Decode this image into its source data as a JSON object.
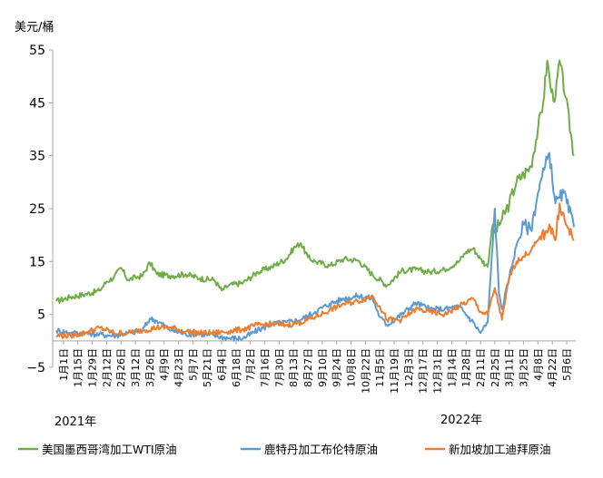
{
  "chart_data": {
    "type": "line",
    "ylabel": "美元/桶",
    "ylim": [
      -5,
      55
    ],
    "yticks": [
      "55",
      "45",
      "35",
      "25",
      "15",
      "5",
      "−5"
    ],
    "x_start": "2021-01-01",
    "x_end": "2022-05-20",
    "xtick_labels": [
      "1月1日",
      "1月15日",
      "1月29日",
      "2月12日",
      "2月26日",
      "3月12日",
      "3月26日",
      "4月9日",
      "4月23日",
      "5月7日",
      "5月21日",
      "6月4日",
      "6月18日",
      "7月2日",
      "7月16日",
      "7月30日",
      "8月13日",
      "8月27日",
      "9月10日",
      "9月24日",
      "10月8日",
      "10月22日",
      "11月5日",
      "11月19日",
      "12月3日",
      "12月17日",
      "12月31日",
      "1月14日",
      "1月28日",
      "2月11日",
      "2月25日",
      "3月11日",
      "3月25日",
      "4月8日",
      "4月22日",
      "5月6日"
    ],
    "years": [
      "2021年",
      "2022年"
    ],
    "legend_position": "bottom",
    "grid": false,
    "colors": {
      "wti": "#70ad47",
      "brent": "#5b9bd5",
      "dubai": "#ed7d31",
      "axis": "#a6a6a6"
    },
    "series": [
      {
        "name": "美国墨西哥湾加工WTI原油",
        "key": "wti",
        "points": [
          [
            "2021-01-01",
            7.5
          ],
          [
            "2021-01-15",
            8.3
          ],
          [
            "2021-01-29",
            8.8
          ],
          [
            "2021-02-12",
            9.5
          ],
          [
            "2021-02-19",
            11.2
          ],
          [
            "2021-02-26",
            12.0
          ],
          [
            "2021-03-05",
            13.8
          ],
          [
            "2021-03-12",
            11.5
          ],
          [
            "2021-03-19",
            12.0
          ],
          [
            "2021-03-26",
            12.3
          ],
          [
            "2021-04-02",
            14.8
          ],
          [
            "2021-04-09",
            12.6
          ],
          [
            "2021-04-23",
            12.3
          ],
          [
            "2021-05-07",
            12.6
          ],
          [
            "2021-05-21",
            11.8
          ],
          [
            "2021-06-04",
            11.5
          ],
          [
            "2021-06-11",
            9.5
          ],
          [
            "2021-06-18",
            10.5
          ],
          [
            "2021-07-02",
            11.0
          ],
          [
            "2021-07-16",
            13.0
          ],
          [
            "2021-07-30",
            14.0
          ],
          [
            "2021-08-13",
            15.5
          ],
          [
            "2021-08-20",
            17.5
          ],
          [
            "2021-08-27",
            18.5
          ],
          [
            "2021-09-03",
            15.8
          ],
          [
            "2021-09-10",
            15.0
          ],
          [
            "2021-09-24",
            14.2
          ],
          [
            "2021-10-08",
            15.5
          ],
          [
            "2021-10-22",
            15.2
          ],
          [
            "2021-11-05",
            12.5
          ],
          [
            "2021-11-19",
            10.5
          ],
          [
            "2021-12-03",
            13.2
          ],
          [
            "2021-12-17",
            13.5
          ],
          [
            "2021-12-31",
            13.0
          ],
          [
            "2022-01-14",
            13.5
          ],
          [
            "2022-01-28",
            15.0
          ],
          [
            "2022-02-04",
            16.8
          ],
          [
            "2022-02-11",
            17.5
          ],
          [
            "2022-02-18",
            15.5
          ],
          [
            "2022-02-25",
            14.0
          ],
          [
            "2022-03-01",
            21.0
          ],
          [
            "2022-03-04",
            20.5
          ],
          [
            "2022-03-11",
            23.0
          ],
          [
            "2022-03-18",
            26.0
          ],
          [
            "2022-03-25",
            30.0
          ],
          [
            "2022-04-01",
            31.5
          ],
          [
            "2022-04-08",
            33.0
          ],
          [
            "2022-04-15",
            40.0
          ],
          [
            "2022-04-20",
            45.0
          ],
          [
            "2022-04-24",
            53.0
          ],
          [
            "2022-04-28",
            47.0
          ],
          [
            "2022-05-02",
            46.0
          ],
          [
            "2022-05-06",
            53.0
          ],
          [
            "2022-05-12",
            46.0
          ],
          [
            "2022-05-20",
            35.0
          ]
        ]
      },
      {
        "name": "鹿特丹加工布伦特原油",
        "key": "brent",
        "points": [
          [
            "2021-01-01",
            2.0
          ],
          [
            "2021-01-15",
            1.5
          ],
          [
            "2021-01-29",
            1.5
          ],
          [
            "2021-02-12",
            1.2
          ],
          [
            "2021-02-26",
            1.0
          ],
          [
            "2021-03-12",
            1.5
          ],
          [
            "2021-03-26",
            2.0
          ],
          [
            "2021-04-02",
            4.2
          ],
          [
            "2021-04-09",
            3.8
          ],
          [
            "2021-04-23",
            2.0
          ],
          [
            "2021-05-07",
            1.3
          ],
          [
            "2021-05-21",
            1.3
          ],
          [
            "2021-06-04",
            1.0
          ],
          [
            "2021-06-18",
            0.5
          ],
          [
            "2021-07-02",
            0.5
          ],
          [
            "2021-07-16",
            2.0
          ],
          [
            "2021-07-30",
            3.2
          ],
          [
            "2021-08-13",
            3.5
          ],
          [
            "2021-08-27",
            4.0
          ],
          [
            "2021-09-10",
            5.5
          ],
          [
            "2021-09-24",
            7.0
          ],
          [
            "2021-10-08",
            8.0
          ],
          [
            "2021-10-22",
            8.5
          ],
          [
            "2021-11-05",
            8.0
          ],
          [
            "2021-11-12",
            4.5
          ],
          [
            "2021-11-19",
            3.0
          ],
          [
            "2021-12-03",
            5.0
          ],
          [
            "2021-12-17",
            7.2
          ],
          [
            "2021-12-31",
            6.0
          ],
          [
            "2022-01-14",
            6.0
          ],
          [
            "2022-01-28",
            6.5
          ],
          [
            "2022-02-11",
            3.5
          ],
          [
            "2022-02-18",
            1.5
          ],
          [
            "2022-02-25",
            3.5
          ],
          [
            "2022-03-04",
            25.0
          ],
          [
            "2022-03-08",
            9.0
          ],
          [
            "2022-03-11",
            6.0
          ],
          [
            "2022-03-18",
            12.0
          ],
          [
            "2022-03-25",
            18.0
          ],
          [
            "2022-04-01",
            22.0
          ],
          [
            "2022-04-08",
            21.0
          ],
          [
            "2022-04-15",
            28.0
          ],
          [
            "2022-04-22",
            33.0
          ],
          [
            "2022-04-26",
            35.5
          ],
          [
            "2022-05-02",
            26.0
          ],
          [
            "2022-05-06",
            27.0
          ],
          [
            "2022-05-10",
            28.0
          ],
          [
            "2022-05-20",
            21.5
          ]
        ]
      },
      {
        "name": "新加坡加工迪拜原油",
        "key": "dubai",
        "points": [
          [
            "2021-01-01",
            1.0
          ],
          [
            "2021-01-15",
            1.0
          ],
          [
            "2021-01-29",
            1.5
          ],
          [
            "2021-02-12",
            2.5
          ],
          [
            "2021-02-26",
            1.5
          ],
          [
            "2021-03-12",
            1.5
          ],
          [
            "2021-03-26",
            2.0
          ],
          [
            "2021-04-09",
            2.5
          ],
          [
            "2021-04-23",
            2.5
          ],
          [
            "2021-05-07",
            1.8
          ],
          [
            "2021-05-21",
            1.5
          ],
          [
            "2021-06-04",
            1.5
          ],
          [
            "2021-06-18",
            1.8
          ],
          [
            "2021-07-02",
            2.2
          ],
          [
            "2021-07-16",
            3.0
          ],
          [
            "2021-07-30",
            3.2
          ],
          [
            "2021-08-13",
            3.0
          ],
          [
            "2021-08-27",
            3.5
          ],
          [
            "2021-09-10",
            4.5
          ],
          [
            "2021-09-24",
            5.8
          ],
          [
            "2021-10-08",
            7.0
          ],
          [
            "2021-10-22",
            7.5
          ],
          [
            "2021-11-05",
            8.5
          ],
          [
            "2021-11-12",
            6.5
          ],
          [
            "2021-11-19",
            4.0
          ],
          [
            "2021-12-03",
            4.0
          ],
          [
            "2021-12-17",
            6.0
          ],
          [
            "2021-12-31",
            5.5
          ],
          [
            "2022-01-14",
            5.0
          ],
          [
            "2022-01-28",
            6.5
          ],
          [
            "2022-02-11",
            8.0
          ],
          [
            "2022-02-18",
            5.5
          ],
          [
            "2022-02-25",
            5.0
          ],
          [
            "2022-03-04",
            10.0
          ],
          [
            "2022-03-11",
            4.0
          ],
          [
            "2022-03-18",
            12.0
          ],
          [
            "2022-03-25",
            15.0
          ],
          [
            "2022-04-01",
            16.0
          ],
          [
            "2022-04-08",
            17.0
          ],
          [
            "2022-04-15",
            19.0
          ],
          [
            "2022-04-22",
            20.5
          ],
          [
            "2022-04-26",
            22.0
          ],
          [
            "2022-05-02",
            19.0
          ],
          [
            "2022-05-06",
            26.0
          ],
          [
            "2022-05-12",
            22.0
          ],
          [
            "2022-05-20",
            19.0
          ]
        ]
      }
    ]
  }
}
